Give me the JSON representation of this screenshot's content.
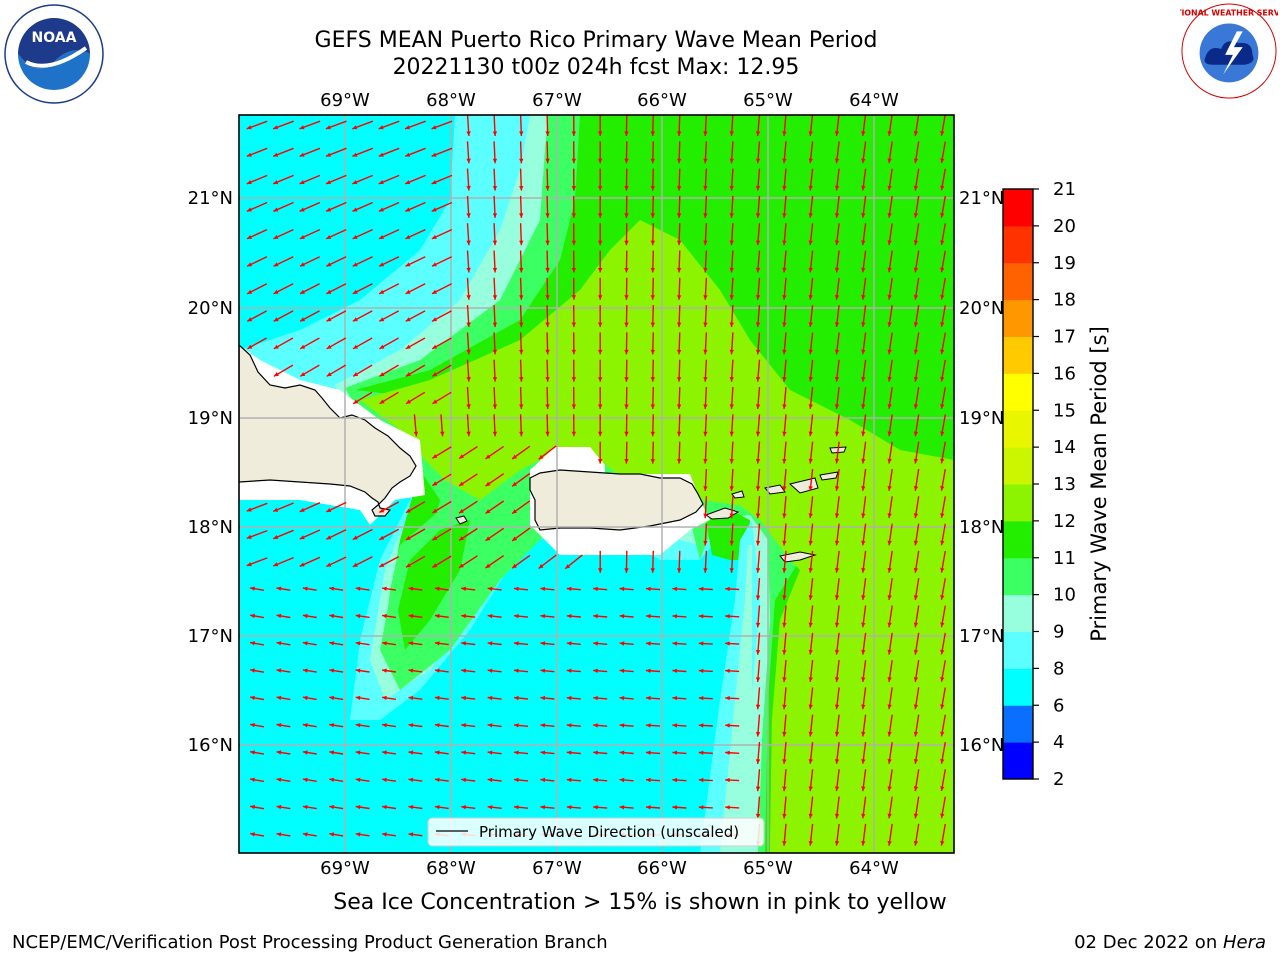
{
  "header": {
    "title_line1": "GEFS MEAN Puerto Rico Primary Wave Mean Period",
    "title_line2": "20221130 t00z 024h fcst   Max: 12.95"
  },
  "logos": {
    "left": "NOAA logo",
    "left_text": "NOAA",
    "right": "National Weather Service logo",
    "right_text": "NATIONAL WEATHER SERVICE"
  },
  "map": {
    "lon_labels": [
      "69°W",
      "68°W",
      "67°W",
      "66°W",
      "65°W",
      "64°W"
    ],
    "lat_labels": [
      "21°N",
      "20°N",
      "19°N",
      "18°N",
      "17°N",
      "16°N"
    ],
    "extent": {
      "lon_min": -70.0,
      "lon_max": -63.25,
      "lat_min": 15.0,
      "lat_max": 21.75
    },
    "legend_label": "Primary Wave Direction (unscaled)",
    "arrow_color": "#ff0000",
    "land_color": "#efecdc",
    "grid_color": "#b0b0b0"
  },
  "colorbar": {
    "title": "Primary Wave Mean Period [s]",
    "ticks": [
      "2",
      "4",
      "6",
      "8",
      "9",
      "10",
      "11",
      "12",
      "13",
      "14",
      "15",
      "16",
      "17",
      "18",
      "19",
      "20",
      "21"
    ],
    "colors": [
      "#0000ff",
      "#0a6fff",
      "#00ffff",
      "#5cffff",
      "#98ffde",
      "#3cff64",
      "#23ee00",
      "#8cf400",
      "#ccf500",
      "#e8f600",
      "#ffff00",
      "#ffcb00",
      "#ff9700",
      "#ff6200",
      "#ff3200",
      "#ff0000"
    ]
  },
  "footnote": "Sea Ice Concentration > 15% is shown in pink to yellow",
  "footer": {
    "left": "NCEP/EMC/Verification Post Processing Product Generation Branch",
    "right_prefix": "02 Dec 2022 on ",
    "right_host": "Hera"
  }
}
